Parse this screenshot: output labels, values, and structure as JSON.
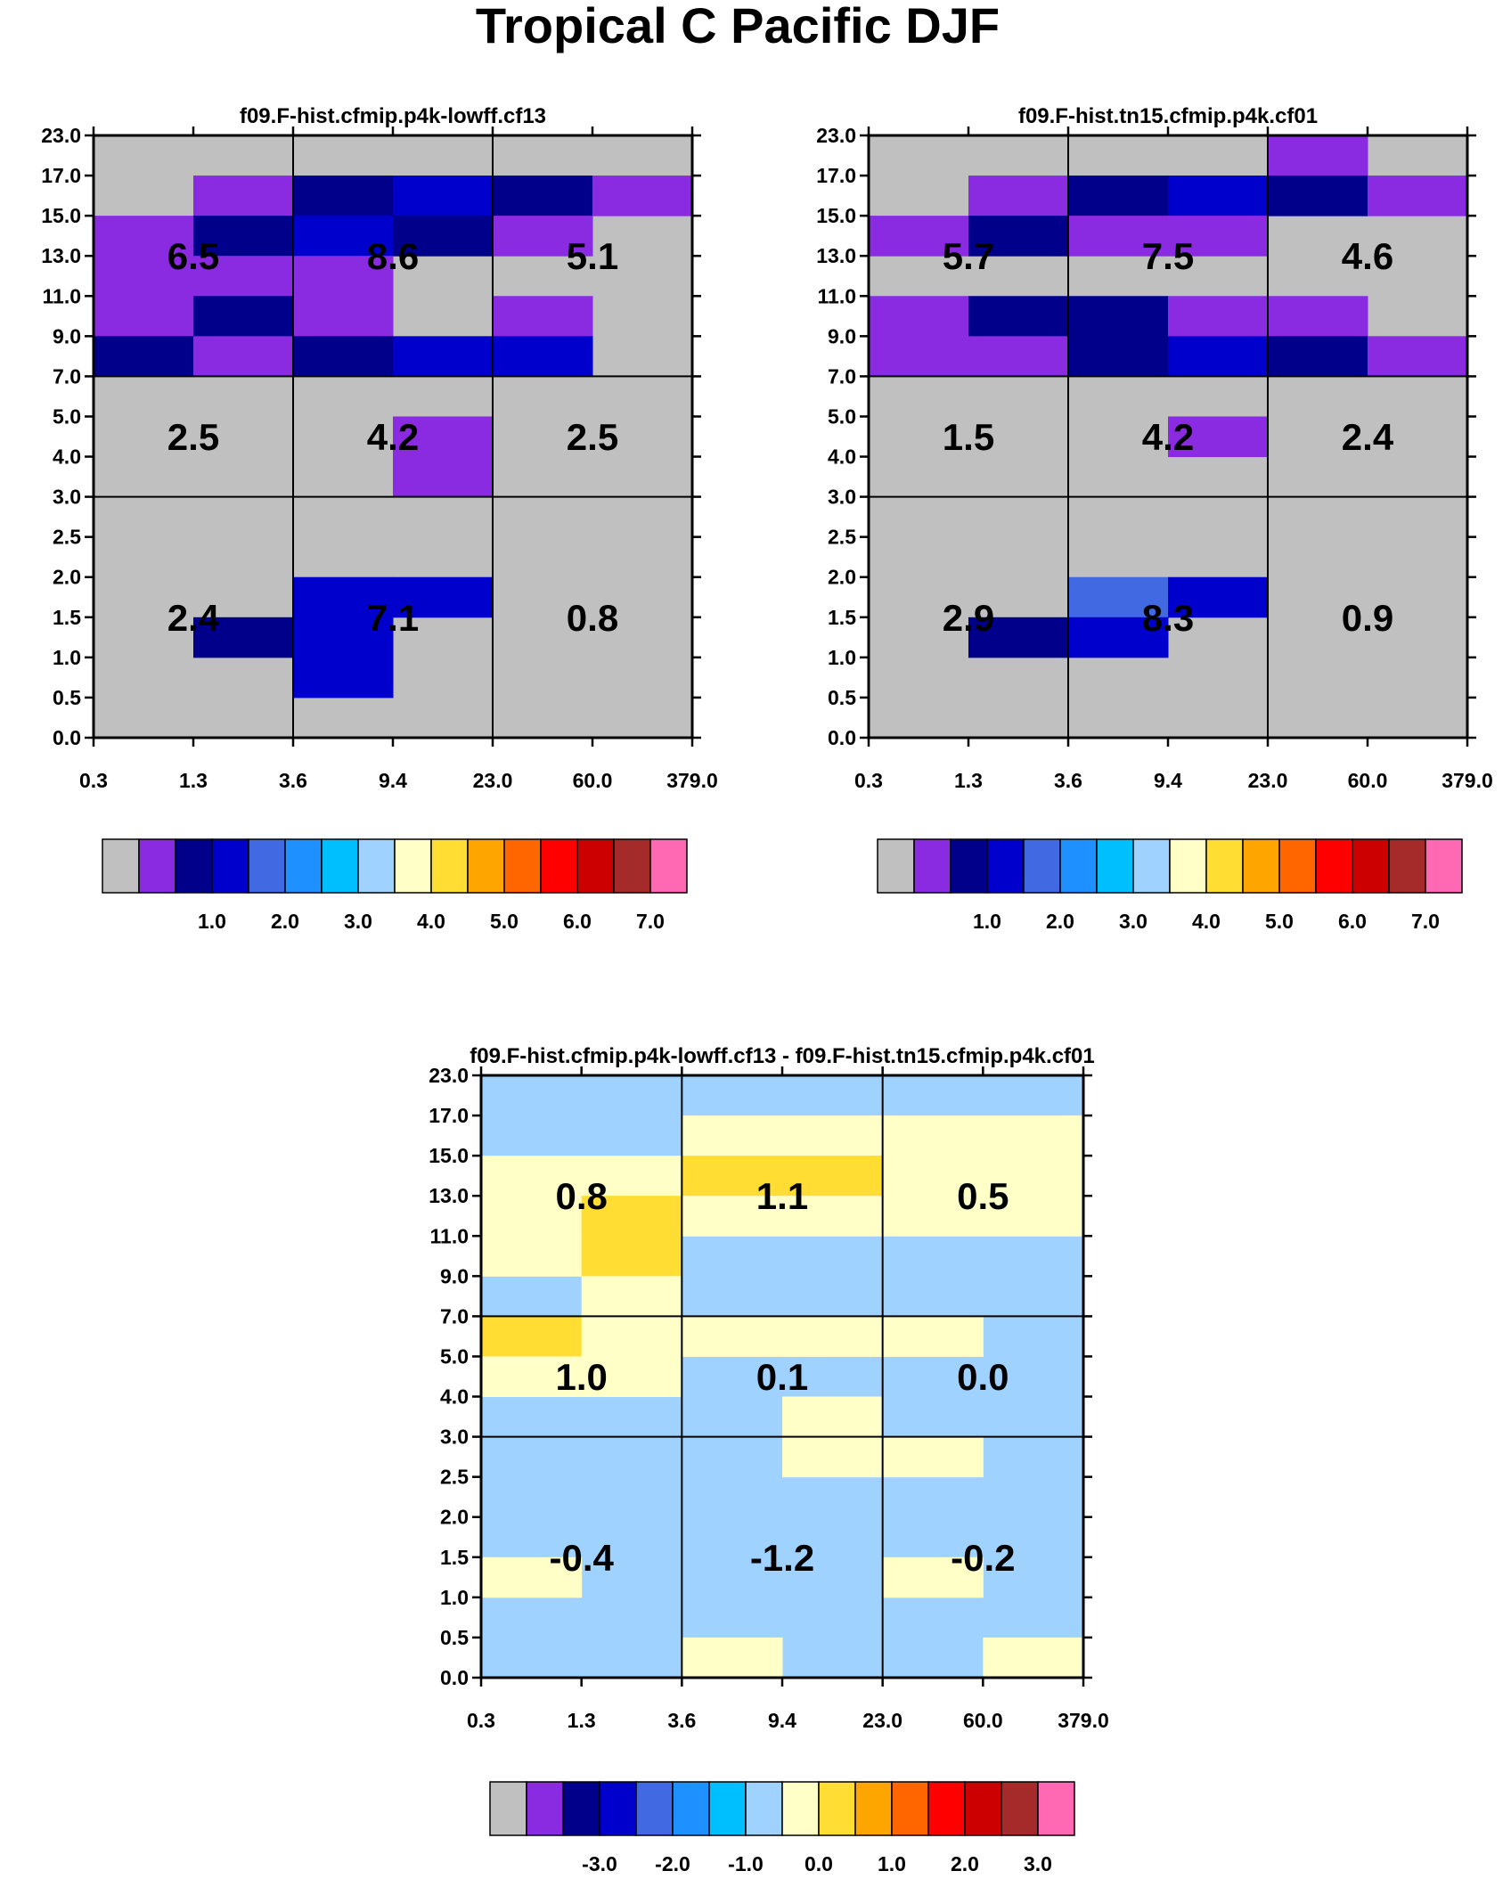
{
  "title": "Tropical C Pacific DJF",
  "colors": {
    "scale": [
      "#c0c0c0",
      "#8a2be2",
      "#00008b",
      "#0000cd",
      "#4169e1",
      "#1e90ff",
      "#00bfff",
      "#a0d2ff",
      "#ffffc8",
      "#ffdd33",
      "#ffa500",
      "#ff6600",
      "#ff0000",
      "#cc0000",
      "#a52a2a",
      "#ff69b4"
    ],
    "diff_bg": "#a0d2ff",
    "missing": "#c0c0c0"
  },
  "chart_data": [
    {
      "type": "heatmap",
      "title": "f09.F-hist.cfmip.p4k-lowff.cf13",
      "xticks": [
        "0.3",
        "1.3",
        "3.6",
        "9.4",
        "23.0",
        "60.0",
        "379.0"
      ],
      "yticks": [
        "0.0",
        "0.5",
        "1.0",
        "1.5",
        "2.0",
        "2.5",
        "3.0",
        "4.0",
        "5.0",
        "7.0",
        "9.0",
        "11.0",
        "13.0",
        "15.0",
        "17.0",
        "23.0"
      ],
      "xlabel": "",
      "ylabel": "",
      "cells": [
        {
          "x": 0,
          "y": 12,
          "c": 1
        },
        {
          "x": 1,
          "y": 13,
          "c": 1
        },
        {
          "x": 2,
          "y": 13,
          "c": 2
        },
        {
          "x": 3,
          "y": 13,
          "c": 3
        },
        {
          "x": 4,
          "y": 13,
          "c": 2
        },
        {
          "x": 5,
          "y": 13,
          "c": 1
        },
        {
          "x": 0,
          "y": 11,
          "c": 1
        },
        {
          "x": 1,
          "y": 12,
          "c": 2
        },
        {
          "x": 2,
          "y": 12,
          "c": 3
        },
        {
          "x": 3,
          "y": 12,
          "c": 2
        },
        {
          "x": 4,
          "y": 12,
          "c": 1
        },
        {
          "x": 1,
          "y": 11,
          "c": 1
        },
        {
          "x": 2,
          "y": 11,
          "c": 1
        },
        {
          "x": 0,
          "y": 10,
          "c": 1
        },
        {
          "x": 1,
          "y": 10,
          "c": 2
        },
        {
          "x": 2,
          "y": 10,
          "c": 1
        },
        {
          "x": 4,
          "y": 10,
          "c": 1
        },
        {
          "x": 0,
          "y": 9,
          "c": 2
        },
        {
          "x": 1,
          "y": 9,
          "c": 1
        },
        {
          "x": 2,
          "y": 9,
          "c": 2
        },
        {
          "x": 3,
          "y": 9,
          "c": 3
        },
        {
          "x": 4,
          "y": 9,
          "c": 3
        },
        {
          "x": 3,
          "y": 7,
          "c": 1
        },
        {
          "x": 3,
          "y": 6,
          "c": 1
        },
        {
          "x": 2,
          "y": 3,
          "c": 3
        },
        {
          "x": 3,
          "y": 3,
          "c": 3
        },
        {
          "x": 1,
          "y": 2,
          "c": 2
        },
        {
          "x": 2,
          "y": 2,
          "c": 3
        },
        {
          "x": 2,
          "y": 1,
          "c": 3
        }
      ],
      "box_values": [
        [
          "6.5",
          "8.6",
          "5.1"
        ],
        [
          "2.5",
          "4.2",
          "2.5"
        ],
        [
          "2.4",
          "7.1",
          "0.8"
        ]
      ],
      "colorbar": {
        "labels": [
          "1.0",
          "2.0",
          "3.0",
          "4.0",
          "5.0",
          "6.0",
          "7.0"
        ]
      }
    },
    {
      "type": "heatmap",
      "title": "f09.F-hist.tn15.cfmip.p4k.cf01",
      "xticks": [
        "0.3",
        "1.3",
        "3.6",
        "9.4",
        "23.0",
        "60.0",
        "379.0"
      ],
      "yticks": [
        "0.0",
        "0.5",
        "1.0",
        "1.5",
        "2.0",
        "2.5",
        "3.0",
        "4.0",
        "5.0",
        "7.0",
        "9.0",
        "11.0",
        "13.0",
        "15.0",
        "17.0",
        "23.0"
      ],
      "xlabel": "",
      "ylabel": "",
      "cells": [
        {
          "x": 4,
          "y": 14,
          "c": 1
        },
        {
          "x": 1,
          "y": 13,
          "c": 1
        },
        {
          "x": 2,
          "y": 13,
          "c": 2
        },
        {
          "x": 3,
          "y": 13,
          "c": 3
        },
        {
          "x": 4,
          "y": 13,
          "c": 2
        },
        {
          "x": 5,
          "y": 13,
          "c": 1
        },
        {
          "x": 0,
          "y": 12,
          "c": 1
        },
        {
          "x": 1,
          "y": 12,
          "c": 2
        },
        {
          "x": 2,
          "y": 12,
          "c": 1
        },
        {
          "x": 3,
          "y": 12,
          "c": 1
        },
        {
          "x": 0,
          "y": 10,
          "c": 1
        },
        {
          "x": 1,
          "y": 10,
          "c": 2
        },
        {
          "x": 2,
          "y": 10,
          "c": 2
        },
        {
          "x": 3,
          "y": 10,
          "c": 1
        },
        {
          "x": 4,
          "y": 10,
          "c": 1
        },
        {
          "x": 0,
          "y": 9,
          "c": 1
        },
        {
          "x": 1,
          "y": 9,
          "c": 1
        },
        {
          "x": 2,
          "y": 9,
          "c": 2
        },
        {
          "x": 3,
          "y": 9,
          "c": 3
        },
        {
          "x": 4,
          "y": 9,
          "c": 2
        },
        {
          "x": 5,
          "y": 9,
          "c": 1
        },
        {
          "x": 3,
          "y": 7,
          "c": 1
        },
        {
          "x": 2,
          "y": 3,
          "c": 4
        },
        {
          "x": 3,
          "y": 3,
          "c": 3
        },
        {
          "x": 1,
          "y": 2,
          "c": 2
        },
        {
          "x": 2,
          "y": 2,
          "c": 3
        }
      ],
      "box_values": [
        [
          "5.7",
          "7.5",
          "4.6"
        ],
        [
          "1.5",
          "4.2",
          "2.4"
        ],
        [
          "2.9",
          "8.3",
          "0.9"
        ]
      ],
      "colorbar": {
        "labels": [
          "1.0",
          "2.0",
          "3.0",
          "4.0",
          "5.0",
          "6.0",
          "7.0"
        ]
      }
    },
    {
      "type": "heatmap",
      "title": "f09.F-hist.cfmip.p4k-lowff.cf13 - f09.F-hist.tn15.cfmip.p4k.cf01",
      "xticks": [
        "0.3",
        "1.3",
        "3.6",
        "9.4",
        "23.0",
        "60.0",
        "379.0"
      ],
      "yticks": [
        "0.0",
        "0.5",
        "1.0",
        "1.5",
        "2.0",
        "2.5",
        "3.0",
        "4.0",
        "5.0",
        "7.0",
        "9.0",
        "11.0",
        "13.0",
        "15.0",
        "17.0",
        "23.0"
      ],
      "xlabel": "",
      "ylabel": "",
      "cells": [
        {
          "x": 2,
          "y": 13,
          "c": 8
        },
        {
          "x": 3,
          "y": 13,
          "c": 8
        },
        {
          "x": 4,
          "y": 13,
          "c": 8
        },
        {
          "x": 5,
          "y": 13,
          "c": 8
        },
        {
          "x": 0,
          "y": 12,
          "c": 8
        },
        {
          "x": 1,
          "y": 12,
          "c": 8
        },
        {
          "x": 2,
          "y": 12,
          "c": 9
        },
        {
          "x": 3,
          "y": 12,
          "c": 9
        },
        {
          "x": 4,
          "y": 12,
          "c": 8
        },
        {
          "x": 5,
          "y": 12,
          "c": 8
        },
        {
          "x": 0,
          "y": 11,
          "c": 8
        },
        {
          "x": 1,
          "y": 11,
          "c": 9
        },
        {
          "x": 2,
          "y": 11,
          "c": 8
        },
        {
          "x": 3,
          "y": 11,
          "c": 8
        },
        {
          "x": 4,
          "y": 11,
          "c": 8
        },
        {
          "x": 5,
          "y": 11,
          "c": 8
        },
        {
          "x": 0,
          "y": 10,
          "c": 8
        },
        {
          "x": 1,
          "y": 10,
          "c": 9
        },
        {
          "x": 1,
          "y": 9,
          "c": 8
        },
        {
          "x": 0,
          "y": 8,
          "c": 9
        },
        {
          "x": 1,
          "y": 8,
          "c": 8
        },
        {
          "x": 2,
          "y": 8,
          "c": 8
        },
        {
          "x": 3,
          "y": 8,
          "c": 8
        },
        {
          "x": 4,
          "y": 8,
          "c": 8
        },
        {
          "x": 0,
          "y": 7,
          "c": 8
        },
        {
          "x": 1,
          "y": 7,
          "c": 8
        },
        {
          "x": 3,
          "y": 6,
          "c": 8
        },
        {
          "x": 3,
          "y": 5,
          "c": 8
        },
        {
          "x": 4,
          "y": 5,
          "c": 8
        },
        {
          "x": 0,
          "y": 2,
          "c": 8
        },
        {
          "x": 4,
          "y": 2,
          "c": 8
        },
        {
          "x": 2,
          "y": 0,
          "c": 8
        },
        {
          "x": 5,
          "y": 0,
          "c": 8
        }
      ],
      "box_values": [
        [
          "0.8",
          "1.1",
          "0.5"
        ],
        [
          "1.0",
          "0.1",
          "0.0"
        ],
        [
          "-0.4",
          "-1.2",
          "-0.2"
        ]
      ],
      "colorbar": {
        "labels": [
          "-3.0",
          "-2.0",
          "-1.0",
          "0.0",
          "1.0",
          "2.0",
          "3.0"
        ]
      }
    }
  ]
}
